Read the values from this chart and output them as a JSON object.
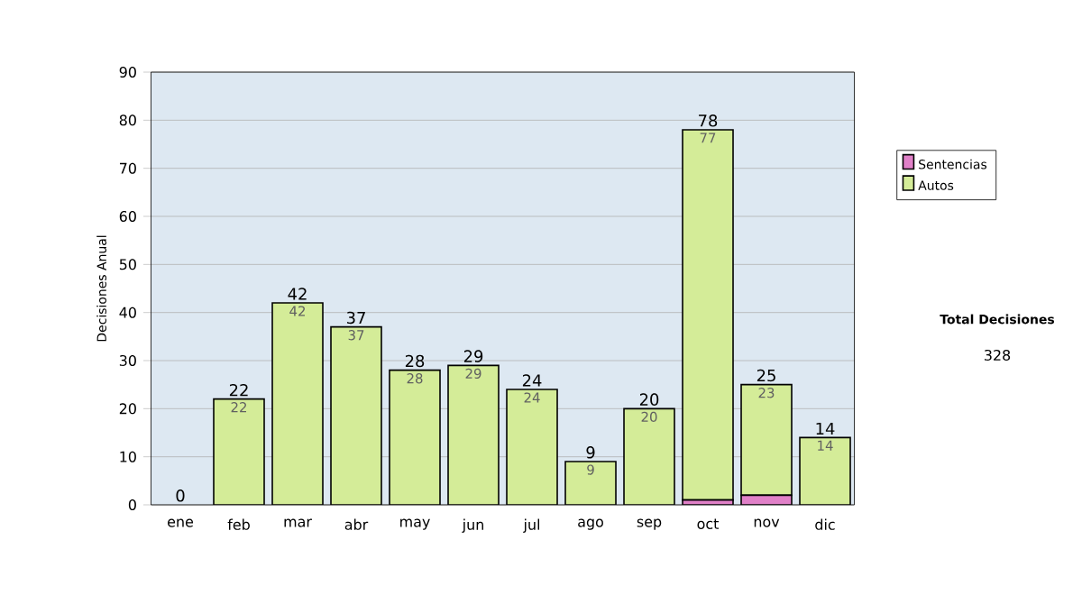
{
  "chart_data": {
    "type": "bar",
    "stacked": true,
    "ylabel": "Decisiones Anual",
    "categories": [
      "ene",
      "feb",
      "mar",
      "abr",
      "may",
      "jun",
      "jul",
      "ago",
      "sep",
      "oct",
      "nov",
      "dic"
    ],
    "series": [
      {
        "name": "Sentencias",
        "color": "#e080c8",
        "values": [
          0,
          0,
          0,
          0,
          0,
          0,
          0,
          0,
          0,
          1,
          2,
          0
        ]
      },
      {
        "name": "Autos",
        "color": "#d4ec98",
        "values": [
          0,
          22,
          42,
          37,
          28,
          29,
          24,
          9,
          20,
          77,
          23,
          14
        ],
        "value_labels": [
          null,
          "22",
          "42",
          "37",
          "28",
          "29",
          "24",
          "9",
          "20",
          "77",
          "23",
          "14"
        ]
      }
    ],
    "totals": [
      "0",
      "22",
      "42",
      "37",
      "28",
      "29",
      "24",
      "9",
      "20",
      "78",
      "25",
      "14"
    ],
    "ylim": [
      0,
      90
    ],
    "yticks": [
      0,
      10,
      20,
      30,
      40,
      50,
      60,
      70,
      80,
      90
    ],
    "grid": "y",
    "legend": "right",
    "annotations": [
      "Total Decisiones",
      "328"
    ]
  }
}
